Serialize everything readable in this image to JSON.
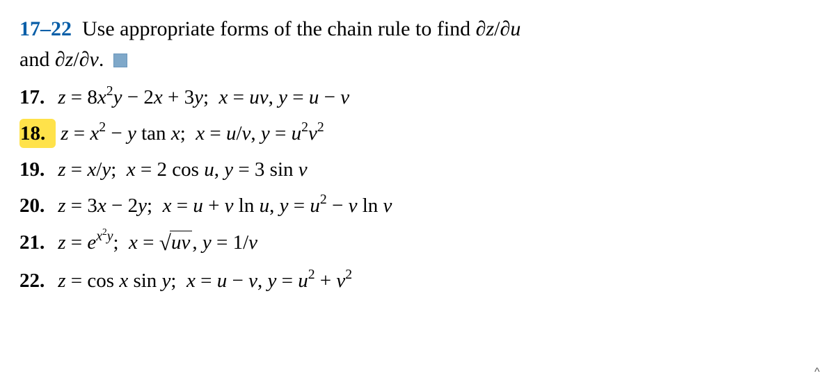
{
  "header": {
    "range": "17–22",
    "instruction_part1": "Use appropriate forms of the chain rule to find ",
    "expr1_html": "<span class='partial'>∂</span>z<span class='up'>/</span><span class='partial'>∂</span>u",
    "instruction_part2": " and ",
    "expr2_html": "<span class='partial'>∂</span>z<span class='up'>/</span><span class='partial'>∂</span>v",
    "instruction_part3": "."
  },
  "problems": [
    {
      "num": "17.",
      "highlighted": false,
      "body_html": "z <span class='up'>=</span> <span class='up'>8</span>x<sup><span class='up'>2</span></sup>y <span class='up'>−</span> <span class='up'>2</span>x <span class='up'>+</span> <span class='up'>3</span>y<span class='up'>;</span>&nbsp; x <span class='up'>=</span> uv<span class='up'>,</span> y <span class='up'>=</span> u <span class='up'>−</span> v"
    },
    {
      "num": "18.",
      "highlighted": true,
      "body_html": "z <span class='up'>=</span> x<sup><span class='up'>2</span></sup> <span class='up'>−</span> y <span class='up'>tan</span> x<span class='up'>;</span>&nbsp; x <span class='up'>=</span> u<span class='up'>/</span>v<span class='up'>,</span> y <span class='up'>=</span> u<sup><span class='up'>2</span></sup>v<sup><span class='up'>2</span></sup>"
    },
    {
      "num": "19.",
      "highlighted": false,
      "body_html": "z <span class='up'>=</span> x<span class='up'>/</span>y<span class='up'>;</span>&nbsp; x <span class='up'>=</span> <span class='up'>2 cos</span> u<span class='up'>,</span> y <span class='up'>=</span> <span class='up'>3 sin</span> v"
    },
    {
      "num": "20.",
      "highlighted": false,
      "body_html": "z <span class='up'>=</span> <span class='up'>3</span>x <span class='up'>−</span> <span class='up'>2</span>y<span class='up'>;</span>&nbsp; x <span class='up'>=</span> u <span class='up'>+</span> v <span class='up'>ln</span> u<span class='up'>,</span> y <span class='up'>=</span> u<sup><span class='up'>2</span></sup> <span class='up'>−</span> v <span class='up'>ln</span> v"
    },
    {
      "num": "21.",
      "highlighted": false,
      "body_html": "z <span class='up'>=</span> e<sup>x<sup><span class='up'>2</span></sup>y</sup><span class='up'>;</span>&nbsp; x <span class='up'>=</span> <span class='sqrt'><span class='radical'>√</span><span class='radicand'>uv</span></span><span class='up'>,</span> y <span class='up'>=</span> <span class='up'>1/</span>v"
    },
    {
      "num": "22.",
      "highlighted": false,
      "body_html": "z <span class='up'>=</span> <span class='up'>cos</span> x <span class='up'>sin</span> y<span class='up'>;</span>&nbsp; x <span class='up'>=</span> u <span class='up'>−</span> v<span class='up'>,</span> y <span class='up'>=</span> u<sup><span class='up'>2</span></sup> <span class='up'>+</span> v<sup><span class='up'>2</span></sup>"
    }
  ],
  "caret": "^"
}
